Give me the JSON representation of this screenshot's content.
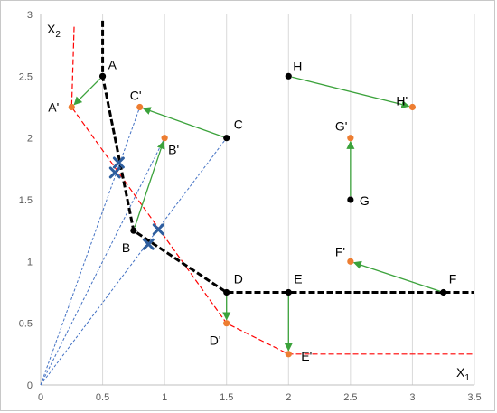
{
  "chart_data": {
    "type": "scatter",
    "title": "",
    "xlabel": "X",
    "xlabel_sub": "1",
    "ylabel": "X",
    "ylabel_sub": "2",
    "xlim": [
      0,
      3.5
    ],
    "ylim": [
      0,
      3
    ],
    "xticks": [
      0,
      0.5,
      1,
      1.5,
      2,
      2.5,
      3,
      3.5
    ],
    "yticks": [
      0,
      0.5,
      1,
      1.5,
      2,
      2.5,
      3
    ],
    "grid": "vertical",
    "original_points": [
      {
        "label": "A",
        "x": 0.5,
        "y": 2.5
      },
      {
        "label": "B",
        "x": 0.75,
        "y": 1.25
      },
      {
        "label": "C",
        "x": 1.5,
        "y": 2.0
      },
      {
        "label": "D",
        "x": 1.5,
        "y": 0.75
      },
      {
        "label": "E",
        "x": 2.0,
        "y": 0.75
      },
      {
        "label": "F",
        "x": 3.25,
        "y": 0.75
      },
      {
        "label": "G",
        "x": 2.5,
        "y": 1.5
      },
      {
        "label": "H",
        "x": 2.0,
        "y": 2.5
      }
    ],
    "projected_points": [
      {
        "label": "A'",
        "x": 0.25,
        "y": 2.25
      },
      {
        "label": "B'",
        "x": 1.0,
        "y": 2.0
      },
      {
        "label": "C'",
        "x": 0.8,
        "y": 2.25
      },
      {
        "label": "D'",
        "x": 1.5,
        "y": 0.5
      },
      {
        "label": "E'",
        "x": 2.0,
        "y": 0.25
      },
      {
        "label": "F'",
        "x": 2.5,
        "y": 1.0
      },
      {
        "label": "G'",
        "x": 2.5,
        "y": 2.0
      },
      {
        "label": "H'",
        "x": 3.0,
        "y": 2.25
      }
    ],
    "moves": [
      {
        "from": "A",
        "to": "A'"
      },
      {
        "from": "B",
        "to": "B'"
      },
      {
        "from": "C",
        "to": "C'"
      },
      {
        "from": "D",
        "to": "D'"
      },
      {
        "from": "E",
        "to": "E'"
      },
      {
        "from": "F",
        "to": "F'"
      },
      {
        "from": "G",
        "to": "G'"
      },
      {
        "from": "H",
        "to": "H'"
      }
    ],
    "original_frontier": [
      [
        0.5,
        2.95
      ],
      [
        0.5,
        2.5
      ],
      [
        0.75,
        1.25
      ],
      [
        1.5,
        0.75
      ],
      [
        3.5,
        0.75
      ]
    ],
    "projected_frontier": [
      [
        0.27,
        2.9
      ],
      [
        0.25,
        2.25
      ],
      [
        1.5,
        0.5
      ],
      [
        2.0,
        0.25
      ],
      [
        3.5,
        0.25
      ]
    ],
    "rays": [
      {
        "to": [
          0.8,
          2.25
        ]
      },
      {
        "to": [
          1.0,
          2.0
        ]
      },
      {
        "to": [
          1.5,
          2.0
        ]
      }
    ],
    "crosses": [
      [
        0.6,
        1.72
      ],
      [
        0.63,
        1.8
      ],
      [
        0.87,
        1.14
      ],
      [
        0.95,
        1.26
      ]
    ],
    "colors": {
      "original": "#000000",
      "projected": "#ED7D31",
      "arrow": "#3BA23B",
      "frontier_projected": "#FF0000",
      "ray": "#4472C4",
      "cross": "#2E5E9E",
      "grid": "#d9d9d9"
    }
  }
}
